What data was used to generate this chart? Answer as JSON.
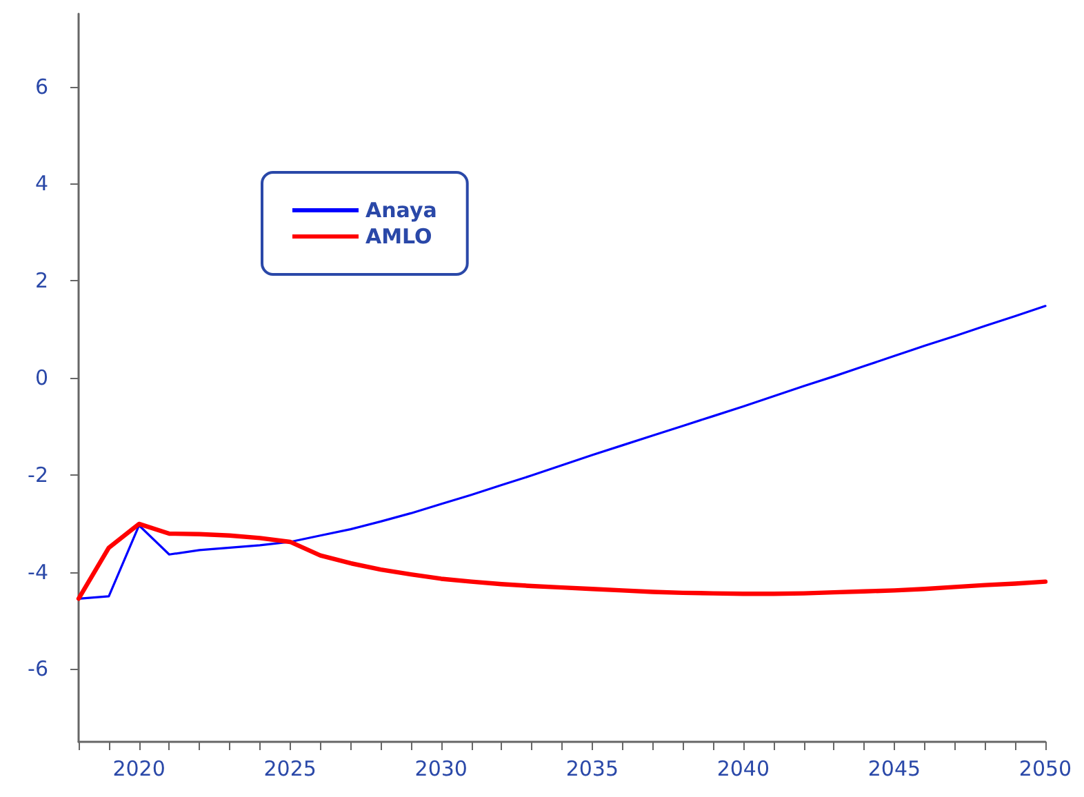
{
  "chart_data": {
    "type": "line",
    "x": [
      2018,
      2019,
      2020,
      2021,
      2022,
      2023,
      2024,
      2025,
      2026,
      2027,
      2028,
      2029,
      2030,
      2031,
      2032,
      2033,
      2034,
      2035,
      2036,
      2037,
      2038,
      2039,
      2040,
      2041,
      2042,
      2043,
      2044,
      2045,
      2046,
      2047,
      2048,
      2049,
      2050
    ],
    "series": [
      {
        "name": "Anaya",
        "color": "#0000ff",
        "values": [
          -4.55,
          -4.5,
          -3.04,
          -3.64,
          -3.55,
          -3.5,
          -3.45,
          -3.38,
          -3.25,
          -3.12,
          -2.96,
          -2.79,
          -2.6,
          -2.41,
          -2.21,
          -2.01,
          -1.8,
          -1.59,
          -1.39,
          -1.19,
          -0.99,
          -0.79,
          -0.59,
          -0.38,
          -0.17,
          0.03,
          0.24,
          0.45,
          0.66,
          0.86,
          1.07,
          1.27,
          1.48
        ]
      },
      {
        "name": "AMLO",
        "color": "#ff0000",
        "values": [
          -4.55,
          -3.5,
          -3.01,
          -3.21,
          -3.22,
          -3.25,
          -3.3,
          -3.38,
          -3.66,
          -3.82,
          -3.95,
          -4.05,
          -4.14,
          -4.2,
          -4.25,
          -4.29,
          -4.32,
          -4.35,
          -4.38,
          -4.41,
          -4.43,
          -4.44,
          -4.45,
          -4.45,
          -4.44,
          -4.42,
          -4.4,
          -4.38,
          -4.35,
          -4.31,
          -4.27,
          -4.24,
          -4.2
        ]
      }
    ],
    "xlim": [
      2018,
      2050
    ],
    "xticks": [
      {
        "value": 2018,
        "label": null
      },
      {
        "value": 2019,
        "label": null
      },
      2020,
      {
        "value": 2021,
        "label": null
      },
      {
        "value": 2022,
        "label": null
      },
      {
        "value": 2023,
        "label": null
      },
      {
        "value": 2024,
        "label": null
      },
      2025,
      {
        "value": 2026,
        "label": null
      },
      {
        "value": 2027,
        "label": null
      },
      {
        "value": 2028,
        "label": null
      },
      {
        "value": 2029,
        "label": null
      },
      2030,
      {
        "value": 2031,
        "label": null
      },
      {
        "value": 2032,
        "label": null
      },
      {
        "value": 2033,
        "label": null
      },
      {
        "value": 2034,
        "label": null
      },
      2035,
      {
        "value": 2036,
        "label": null
      },
      {
        "value": 2037,
        "label": null
      },
      {
        "value": 2038,
        "label": null
      },
      {
        "value": 2039,
        "label": null
      },
      2040,
      {
        "value": 2041,
        "label": null
      },
      {
        "value": 2042,
        "label": null
      },
      {
        "value": 2043,
        "label": null
      },
      {
        "value": 2044,
        "label": null
      },
      2045,
      {
        "value": 2046,
        "label": null
      },
      {
        "value": 2047,
        "label": null
      },
      {
        "value": 2048,
        "label": null
      },
      {
        "value": 2049,
        "label": null
      },
      2050
    ],
    "ylim": [
      -7.5,
      7.5
    ],
    "yticks": [
      -6,
      -4,
      -2,
      0,
      2,
      4,
      6
    ],
    "grid": false,
    "legend": "top left",
    "marker": "none",
    "line_style": "solid"
  }
}
